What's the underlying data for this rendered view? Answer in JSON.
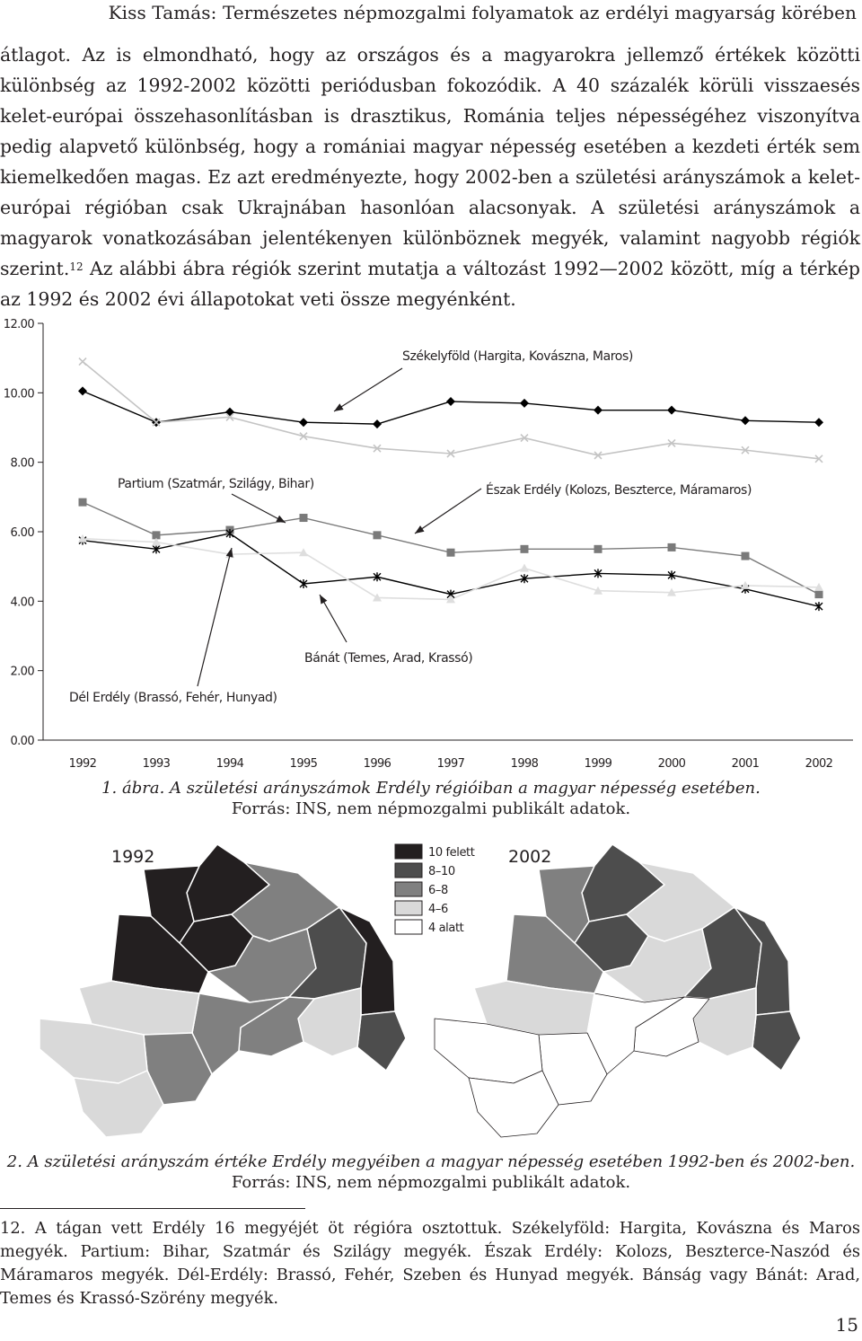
{
  "running_head": "Kiss Tamás: Természetes népmozgalmi folyamatok az erdélyi magyarság körében",
  "paragraph": {
    "part1": "átlagot. Az is elmondható, hogy az országos és a magyarokra jellemző értékek közötti különbség az 1992-2002 közötti periódusban fokozódik. A 40 százalék körüli visszaesés kelet-európai összehasonlításban is drasztikus, Románia teljes népességéhez viszonyítva pedig alapvető különbség, hogy a romániai magyar népesség esetében a kezdeti érték sem kiemelkedően magas. Ez azt eredményezte, hogy 2002-ben a születési arányszámok a kelet-európai régióban csak Ukrajnában hasonlóan alacsonyak. A születési arányszámok a magyarok vonatkozásában jelentékenyen különböznek megyék, valamint nagyobb régiók szerint.",
    "footnote_ref": "12",
    "part2": " Az alábbi ábra régiók szerint mutatja a változást 1992—2002 között, míg a térkép az 1992 és 2002 évi állapotokat veti össze megyénként."
  },
  "figure1": {
    "caption": "1. ábra. A születési arányszámok Erdély régióiban a magyar népesség esetében.",
    "source": "Forrás: INS, nem népmozgalmi publikált adatok."
  },
  "chart_data": {
    "type": "line",
    "categories": [
      "1992",
      "1993",
      "1994",
      "1995",
      "1996",
      "1997",
      "1998",
      "1999",
      "2000",
      "2001",
      "2002"
    ],
    "y_ticks": [
      "0.00",
      "2.00",
      "4.00",
      "6.00",
      "8.00",
      "10.00",
      "12.00"
    ],
    "ylim": [
      0,
      12
    ],
    "grid": false,
    "series": [
      {
        "name": "Székelyföld (Hargita, Kovászna, Maros)",
        "color": "#000000",
        "marker": "diamond",
        "values": [
          10.05,
          9.15,
          9.45,
          9.15,
          9.1,
          9.75,
          9.7,
          9.5,
          9.5,
          9.2,
          9.15
        ]
      },
      {
        "name": "Partium (Szatmár, Szilágy, Bihar)",
        "color": "#7a7a7a",
        "marker": "square",
        "values": [
          6.85,
          5.9,
          6.05,
          6.4,
          5.9,
          5.4,
          5.5,
          5.5,
          5.55,
          5.3,
          4.2
        ]
      },
      {
        "name": "Észak Erdély (Kolozs, Beszterce, Máramaros)",
        "color": "#c4c4c4",
        "marker": "x",
        "values": [
          10.9,
          9.15,
          9.3,
          8.75,
          8.4,
          8.25,
          8.7,
          8.2,
          8.55,
          8.35,
          8.1
        ]
      },
      {
        "name": "Dél Erdély (Brassó, Fehér, Hunyad)",
        "color": "#000000",
        "marker": "star",
        "values": [
          5.75,
          5.5,
          5.95,
          4.5,
          4.7,
          4.2,
          4.65,
          4.8,
          4.75,
          4.35,
          3.85
        ]
      },
      {
        "name": "Bánát (Temes, Arad, Krassó)",
        "color": "#dedede",
        "marker": "triangle",
        "values": [
          5.8,
          5.7,
          5.35,
          5.4,
          4.1,
          4.05,
          4.95,
          4.3,
          4.25,
          4.45,
          4.4
        ]
      }
    ]
  },
  "figure2": {
    "label_left": "1992",
    "label_right": "2002",
    "legend": [
      {
        "label": "10 felett",
        "color": "#231f20"
      },
      {
        "label": "8–10",
        "color": "#4d4d4d"
      },
      {
        "label": "6–8",
        "color": "#808080"
      },
      {
        "label": "4–6",
        "color": "#d9d9d9"
      },
      {
        "label": "4 alatt",
        "color": "#ffffff"
      }
    ],
    "caption": "2. A születési arányszám értéke Erdély megyéiben a magyar népesség esetében 1992-ben és 2002-ben.",
    "source": "Forrás: INS, nem népmozgalmi publikált adatok."
  },
  "footnote": {
    "number": "12.",
    "text": "A tágan vett Erdély 16 megyéjét öt régióra osztottuk. Székelyföld: Hargita, Kovászna és Maros megyék. Partium: Bihar, Szatmár és Szilágy megyék. Észak Erdély: Kolozs, Beszterce-Naszód és Máramaros megyék. Dél-Erdély: Brassó, Fehér, Szeben és Hunyad megyék. Bánság vagy Bánát: Arad, Temes és Krassó-Szörény megyék."
  },
  "page_number": "15"
}
